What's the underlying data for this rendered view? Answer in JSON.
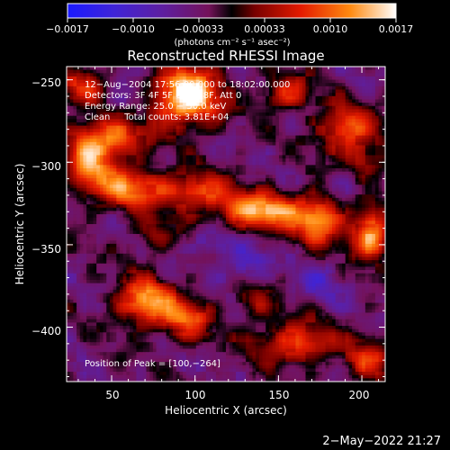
{
  "chart_data": {
    "type": "heatmap",
    "title": "Reconstructed RHESSI Image",
    "xlabel": "Heliocentric X (arcsec)",
    "ylabel": "Heliocentric Y (arcsec)",
    "xlim": [
      23,
      214
    ],
    "ylim": [
      -433,
      -242
    ],
    "x_ticks": [
      {
        "value": 50,
        "label": "50"
      },
      {
        "value": 100,
        "label": "100"
      },
      {
        "value": 150,
        "label": "150"
      },
      {
        "value": 200,
        "label": "200"
      }
    ],
    "y_ticks": [
      {
        "value": -250,
        "label": "−250"
      },
      {
        "value": -300,
        "label": "−300"
      },
      {
        "value": -350,
        "label": "−350"
      },
      {
        "value": -400,
        "label": "−400"
      }
    ],
    "colorbar": {
      "min": -0.0017,
      "max": 0.0017,
      "tick_labels": [
        "−0.0017",
        "−0.0010",
        "−0.00033",
        "0.00033",
        "0.0010",
        "0.0017"
      ],
      "unit_label": "(photons cm⁻² s⁻¹ asec⁻²)"
    },
    "annotations": [
      "12−Aug−2004 17:56:00.000 to 18:02:00.000",
      "Detectors: 3F 4F 5F 6F 7F 8F, Att 0",
      "Energy Range: 25.0 − 50.0 keV",
      "Clean     Total counts: 3.81E+04"
    ],
    "peak_label": "Position of Peak = [100,−264]",
    "peak": {
      "x": 100,
      "y": -264
    },
    "blobs": [
      {
        "x": 95,
        "y": -260,
        "sx": 14,
        "sy": 12,
        "a": 1.3
      },
      {
        "x": 50,
        "y": -285,
        "sx": 14,
        "sy": 10,
        "a": 0.8
      },
      {
        "x": 35,
        "y": -300,
        "sx": 9,
        "sy": 12,
        "a": 0.7
      },
      {
        "x": 60,
        "y": -315,
        "sx": 16,
        "sy": 9,
        "a": 0.8
      },
      {
        "x": 100,
        "y": -318,
        "sx": 15,
        "sy": 8,
        "a": 0.7
      },
      {
        "x": 140,
        "y": -330,
        "sx": 18,
        "sy": 8,
        "a": 1.0
      },
      {
        "x": 175,
        "y": -335,
        "sx": 10,
        "sy": 11,
        "a": 0.85
      },
      {
        "x": 205,
        "y": -345,
        "sx": 8,
        "sy": 10,
        "a": 1.05
      },
      {
        "x": 190,
        "y": -280,
        "sx": 12,
        "sy": 10,
        "a": 0.75
      },
      {
        "x": 155,
        "y": -258,
        "sx": 10,
        "sy": 8,
        "a": 0.6
      },
      {
        "x": 200,
        "y": -300,
        "sx": 10,
        "sy": 8,
        "a": 0.5
      },
      {
        "x": 70,
        "y": -385,
        "sx": 12,
        "sy": 10,
        "a": 0.95
      },
      {
        "x": 95,
        "y": -395,
        "sx": 10,
        "sy": 9,
        "a": 0.7
      },
      {
        "x": 160,
        "y": -410,
        "sx": 18,
        "sy": 9,
        "a": 0.7
      },
      {
        "x": 205,
        "y": -420,
        "sx": 9,
        "sy": 9,
        "a": 0.55
      },
      {
        "x": 135,
        "y": -385,
        "sx": 8,
        "sy": 8,
        "a": 0.45
      },
      {
        "x": 30,
        "y": -255,
        "sx": 10,
        "sy": 8,
        "a": 0.55
      },
      {
        "x": 75,
        "y": -345,
        "sx": 9,
        "sy": 7,
        "a": 0.4
      },
      {
        "x": 130,
        "y": -362,
        "sx": 10,
        "sy": 8,
        "a": -0.45
      },
      {
        "x": 110,
        "y": -348,
        "sx": 8,
        "sy": 6,
        "a": -0.35
      },
      {
        "x": 190,
        "y": -312,
        "sx": 8,
        "sy": 9,
        "a": -0.35
      },
      {
        "x": 175,
        "y": -372,
        "sx": 11,
        "sy": 9,
        "a": -0.3
      },
      {
        "x": 60,
        "y": -262,
        "sx": 9,
        "sy": 9,
        "a": -0.25
      }
    ]
  },
  "footer": {
    "timestamp": "2−May−2022 21:27"
  }
}
